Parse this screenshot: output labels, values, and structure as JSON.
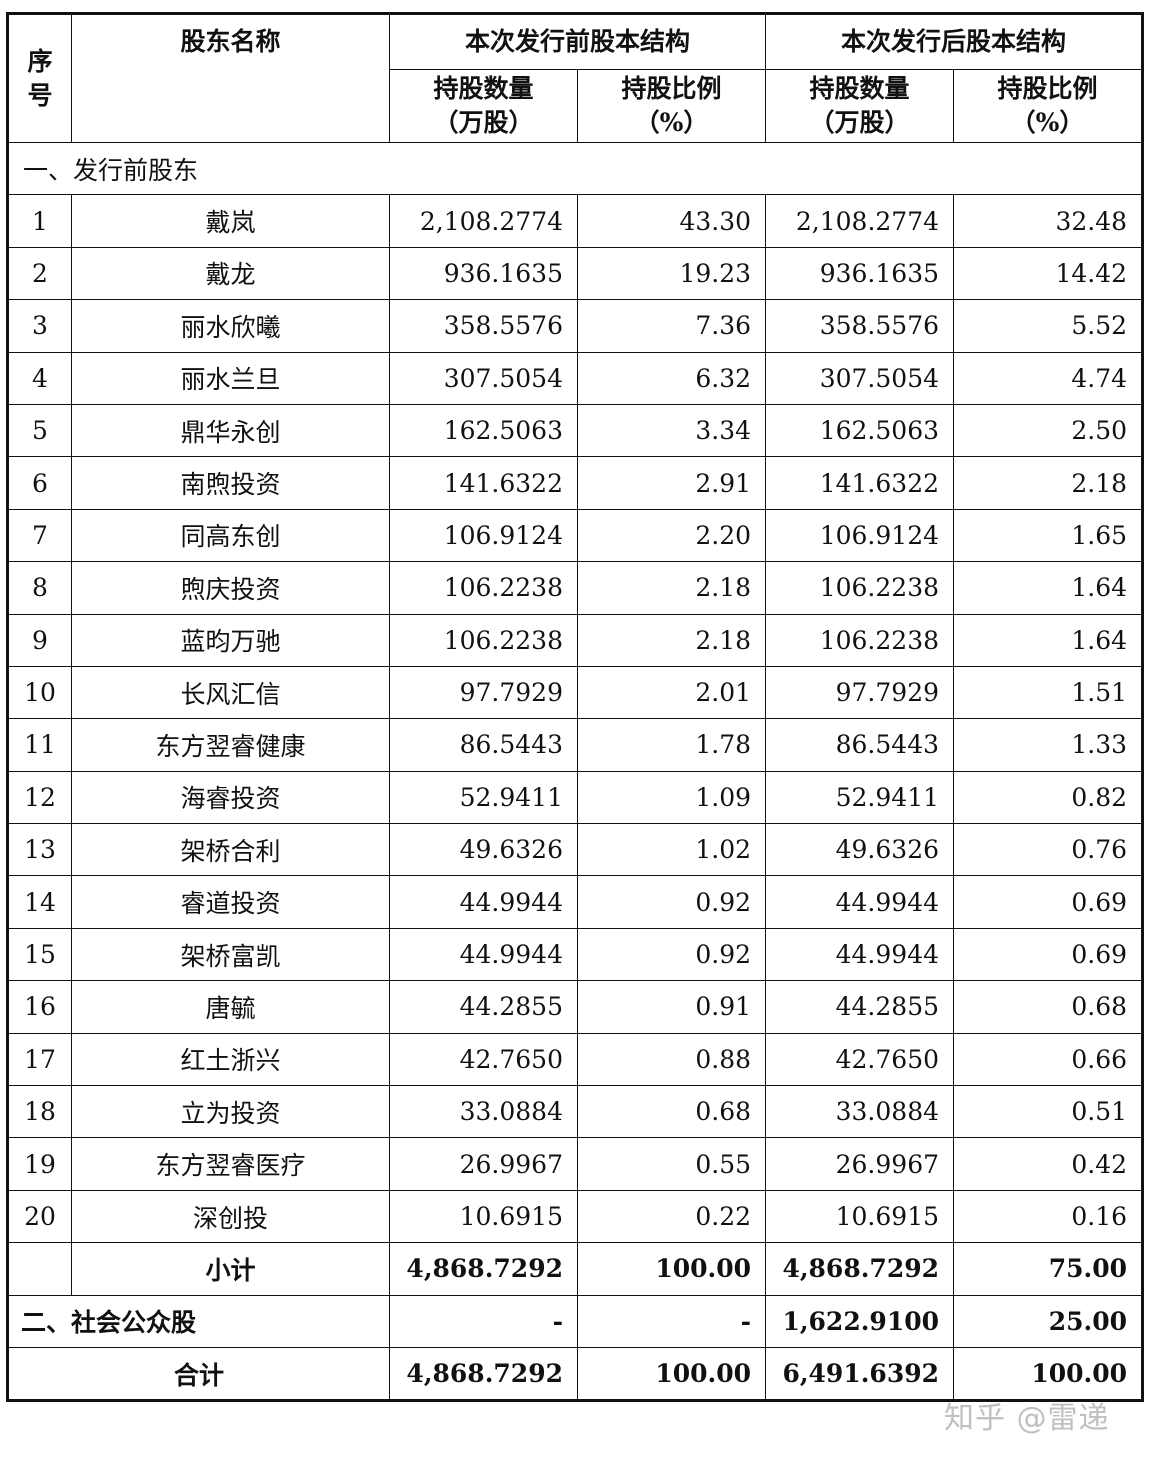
{
  "header": {
    "seq": "序\n号",
    "name": "股东名称",
    "before": "本次发行前股本结构",
    "after": "本次发行后股本结构",
    "qty": "持股数量\n（万股）",
    "ratio": "持股比例\n（%）"
  },
  "section1": "一、发行前股东",
  "rows": [
    {
      "no": "1",
      "name": "戴岚",
      "bq": "2,108.2774",
      "br": "43.30",
      "aq": "2,108.2774",
      "ar": "32.48"
    },
    {
      "no": "2",
      "name": "戴龙",
      "bq": "936.1635",
      "br": "19.23",
      "aq": "936.1635",
      "ar": "14.42"
    },
    {
      "no": "3",
      "name": "丽水欣曦",
      "bq": "358.5576",
      "br": "7.36",
      "aq": "358.5576",
      "ar": "5.52"
    },
    {
      "no": "4",
      "name": "丽水兰旦",
      "bq": "307.5054",
      "br": "6.32",
      "aq": "307.5054",
      "ar": "4.74"
    },
    {
      "no": "5",
      "name": "鼎华永创",
      "bq": "162.5063",
      "br": "3.34",
      "aq": "162.5063",
      "ar": "2.50"
    },
    {
      "no": "6",
      "name": "南煦投资",
      "bq": "141.6322",
      "br": "2.91",
      "aq": "141.6322",
      "ar": "2.18"
    },
    {
      "no": "7",
      "name": "同高东创",
      "bq": "106.9124",
      "br": "2.20",
      "aq": "106.9124",
      "ar": "1.65"
    },
    {
      "no": "8",
      "name": "煦庆投资",
      "bq": "106.2238",
      "br": "2.18",
      "aq": "106.2238",
      "ar": "1.64"
    },
    {
      "no": "9",
      "name": "蓝昀万驰",
      "bq": "106.2238",
      "br": "2.18",
      "aq": "106.2238",
      "ar": "1.64"
    },
    {
      "no": "10",
      "name": "长风汇信",
      "bq": "97.7929",
      "br": "2.01",
      "aq": "97.7929",
      "ar": "1.51"
    },
    {
      "no": "11",
      "name": "东方翌睿健康",
      "bq": "86.5443",
      "br": "1.78",
      "aq": "86.5443",
      "ar": "1.33"
    },
    {
      "no": "12",
      "name": "海睿投资",
      "bq": "52.9411",
      "br": "1.09",
      "aq": "52.9411",
      "ar": "0.82"
    },
    {
      "no": "13",
      "name": "架桥合利",
      "bq": "49.6326",
      "br": "1.02",
      "aq": "49.6326",
      "ar": "0.76"
    },
    {
      "no": "14",
      "name": "睿道投资",
      "bq": "44.9944",
      "br": "0.92",
      "aq": "44.9944",
      "ar": "0.69"
    },
    {
      "no": "15",
      "name": "架桥富凯",
      "bq": "44.9944",
      "br": "0.92",
      "aq": "44.9944",
      "ar": "0.69"
    },
    {
      "no": "16",
      "name": "唐毓",
      "bq": "44.2855",
      "br": "0.91",
      "aq": "44.2855",
      "ar": "0.68"
    },
    {
      "no": "17",
      "name": "红土浙兴",
      "bq": "42.7650",
      "br": "0.88",
      "aq": "42.7650",
      "ar": "0.66"
    },
    {
      "no": "18",
      "name": "立为投资",
      "bq": "33.0884",
      "br": "0.68",
      "aq": "33.0884",
      "ar": "0.51"
    },
    {
      "no": "19",
      "name": "东方翌睿医疗",
      "bq": "26.9967",
      "br": "0.55",
      "aq": "26.9967",
      "ar": "0.42"
    },
    {
      "no": "20",
      "name": "深创投",
      "bq": "10.6915",
      "br": "0.22",
      "aq": "10.6915",
      "ar": "0.16"
    }
  ],
  "subtotal": {
    "label": "小计",
    "bq": "4,868.7292",
    "br": "100.00",
    "aq": "4,868.7292",
    "ar": "75.00"
  },
  "section2": {
    "label": "二、社会公众股",
    "bq": "-",
    "br": "-",
    "aq": "1,622.9100",
    "ar": "25.00"
  },
  "total": {
    "label": "合计",
    "bq": "4,868.7292",
    "br": "100.00",
    "aq": "6,491.6392",
    "ar": "100.00"
  },
  "watermark": "知乎 @雷递"
}
